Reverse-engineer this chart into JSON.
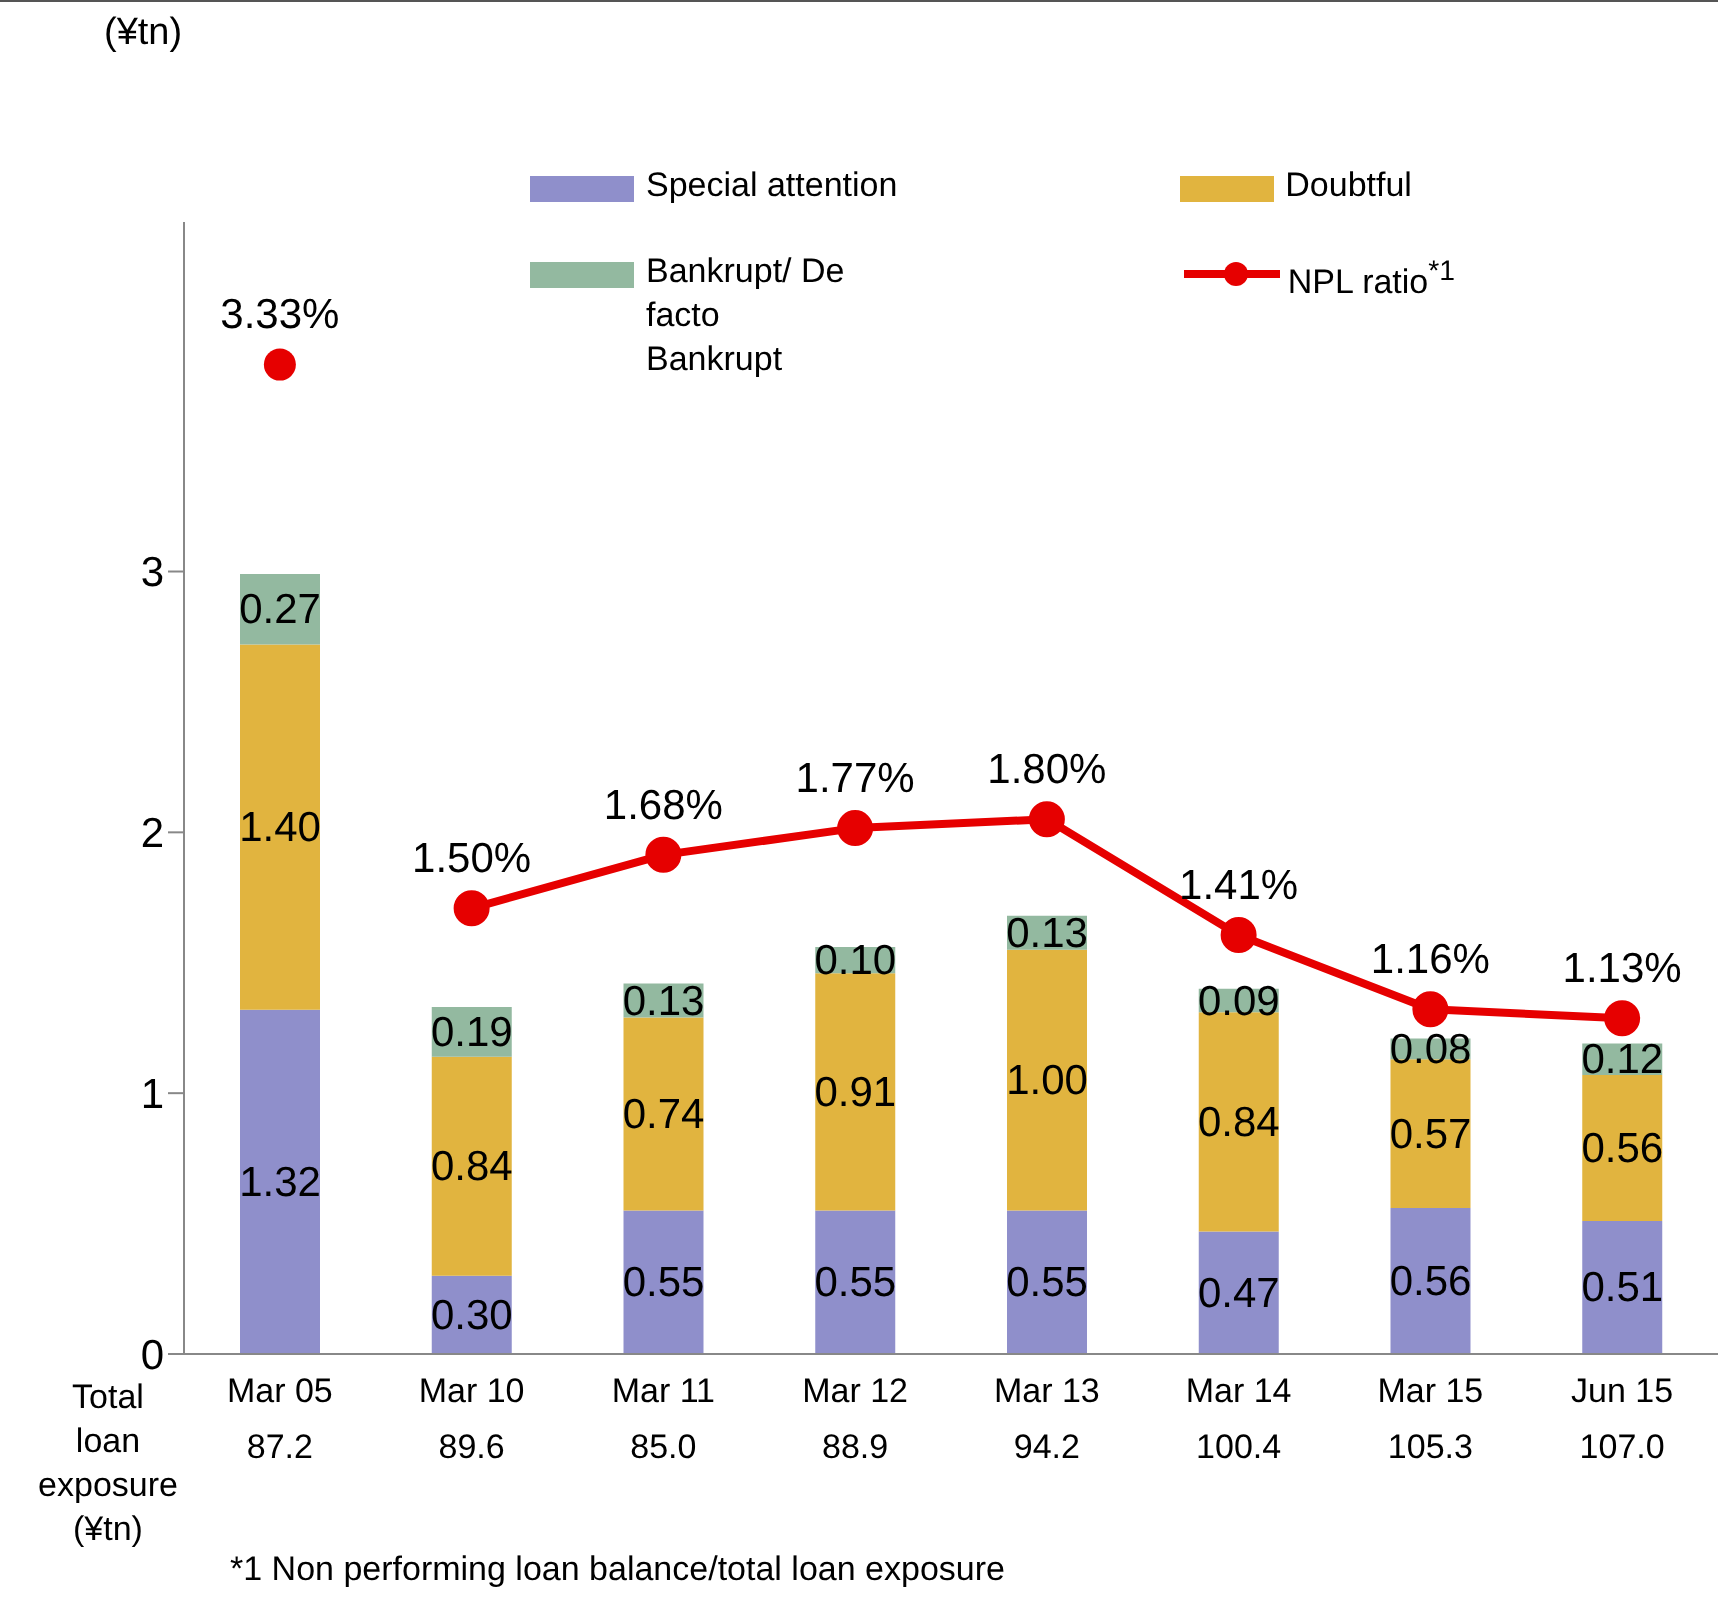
{
  "chart_data": {
    "type": "bar",
    "stacked": true,
    "ylabel": "(¥tn)",
    "categories": [
      "Mar 05",
      "Mar 10",
      "Mar 11",
      "Mar 12",
      "Mar 13",
      "Mar 14",
      "Mar 15",
      "Jun 15"
    ],
    "series": [
      {
        "name": "Special attention",
        "color": "#8f8fcb",
        "values": [
          1.32,
          0.3,
          0.55,
          0.55,
          0.55,
          0.47,
          0.56,
          0.51
        ],
        "value_labels": [
          "1.32",
          "0.30",
          "0.55",
          "0.55",
          "0.55",
          "0.47",
          "0.56",
          "0.51"
        ]
      },
      {
        "name": "Doubtful",
        "color": "#e1b43f",
        "values": [
          1.4,
          0.84,
          0.74,
          0.91,
          1.0,
          0.84,
          0.57,
          0.56
        ],
        "value_labels": [
          "1.40",
          "0.84",
          "0.74",
          "0.91",
          "1.00",
          "0.84",
          "0.57",
          "0.56"
        ]
      },
      {
        "name": "Bankrupt/ De facto Bankrupt",
        "color": "#93b9a0",
        "values": [
          0.27,
          0.19,
          0.13,
          0.1,
          0.13,
          0.09,
          0.08,
          0.12
        ],
        "value_labels": [
          "0.27",
          "0.19",
          "0.13",
          "0.10",
          "0.13",
          "0.09",
          "0.08",
          "0.12"
        ]
      },
      {
        "name": "NPL ratio$^{*1}$",
        "type": "line",
        "axis": "y2",
        "color": "#e60000",
        "values": [
          null,
          1.5,
          1.68,
          1.77,
          1.8,
          1.41,
          1.16,
          1.13
        ],
        "value_labels": [
          null,
          "1.50%",
          "1.68%",
          "1.77%",
          "1.80%",
          "1.41%",
          "1.16%",
          "1.13%"
        ]
      },
      {
        "type": "scatter",
        "axis": "y2",
        "color": "#e60000",
        "values": [
          3.33,
          null,
          null,
          null,
          null,
          null,
          null,
          null
        ],
        "value_labels": [
          "3.33%",
          null,
          null,
          null,
          null,
          null,
          null,
          null
        ]
      }
    ],
    "ylim": [
      0,
      4.34
    ],
    "yticks": [
      0,
      1,
      2,
      3
    ],
    "y2lim": [
      0,
      3.81
    ],
    "legend": "top right",
    "marker": "circle",
    "line_style": "solid",
    "annotations": [
      "Total loan exposure (¥tn)",
      "87.2",
      "89.6",
      "85.0",
      "88.9",
      "94.2",
      "100.4",
      "105.3",
      "107.0",
      "*1 Non performing loan balance/total loan exposure"
    ]
  }
}
